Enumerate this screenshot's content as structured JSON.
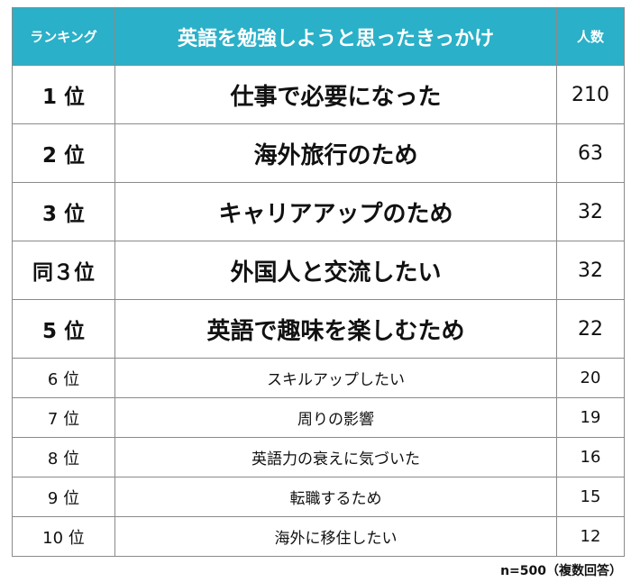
{
  "header": {
    "rank_label": "ランキング",
    "title": "英語を勉強しようと思ったきっかけ",
    "count_label": "人数"
  },
  "rows": [
    {
      "rank": "1 位",
      "reason": "仕事で必要になった",
      "count": "210"
    },
    {
      "rank": "2 位",
      "reason": "海外旅行のため",
      "count": "63"
    },
    {
      "rank": "3 位",
      "reason": "キャリアアップのため",
      "count": "32"
    },
    {
      "rank": "同３位",
      "reason": "外国人と交流したい",
      "count": "32"
    },
    {
      "rank": "5 位",
      "reason": "英語で趣味を楽しむため",
      "count": "22"
    },
    {
      "rank": "6 位",
      "reason": "スキルアップしたい",
      "count": "20"
    },
    {
      "rank": "7 位",
      "reason": "周りの影響",
      "count": "19"
    },
    {
      "rank": "8 位",
      "reason": "英語力の衰えに気づいた",
      "count": "16"
    },
    {
      "rank": "9 位",
      "reason": "転職するため",
      "count": "15"
    },
    {
      "rank": "10 位",
      "reason": "海外に移住したい",
      "count": "12"
    }
  ],
  "footnote": "n=500（複数回答）",
  "colors": {
    "header_bg": "#2ab0c8",
    "header_text": "#ffffff",
    "border": "#8a8a8a"
  }
}
